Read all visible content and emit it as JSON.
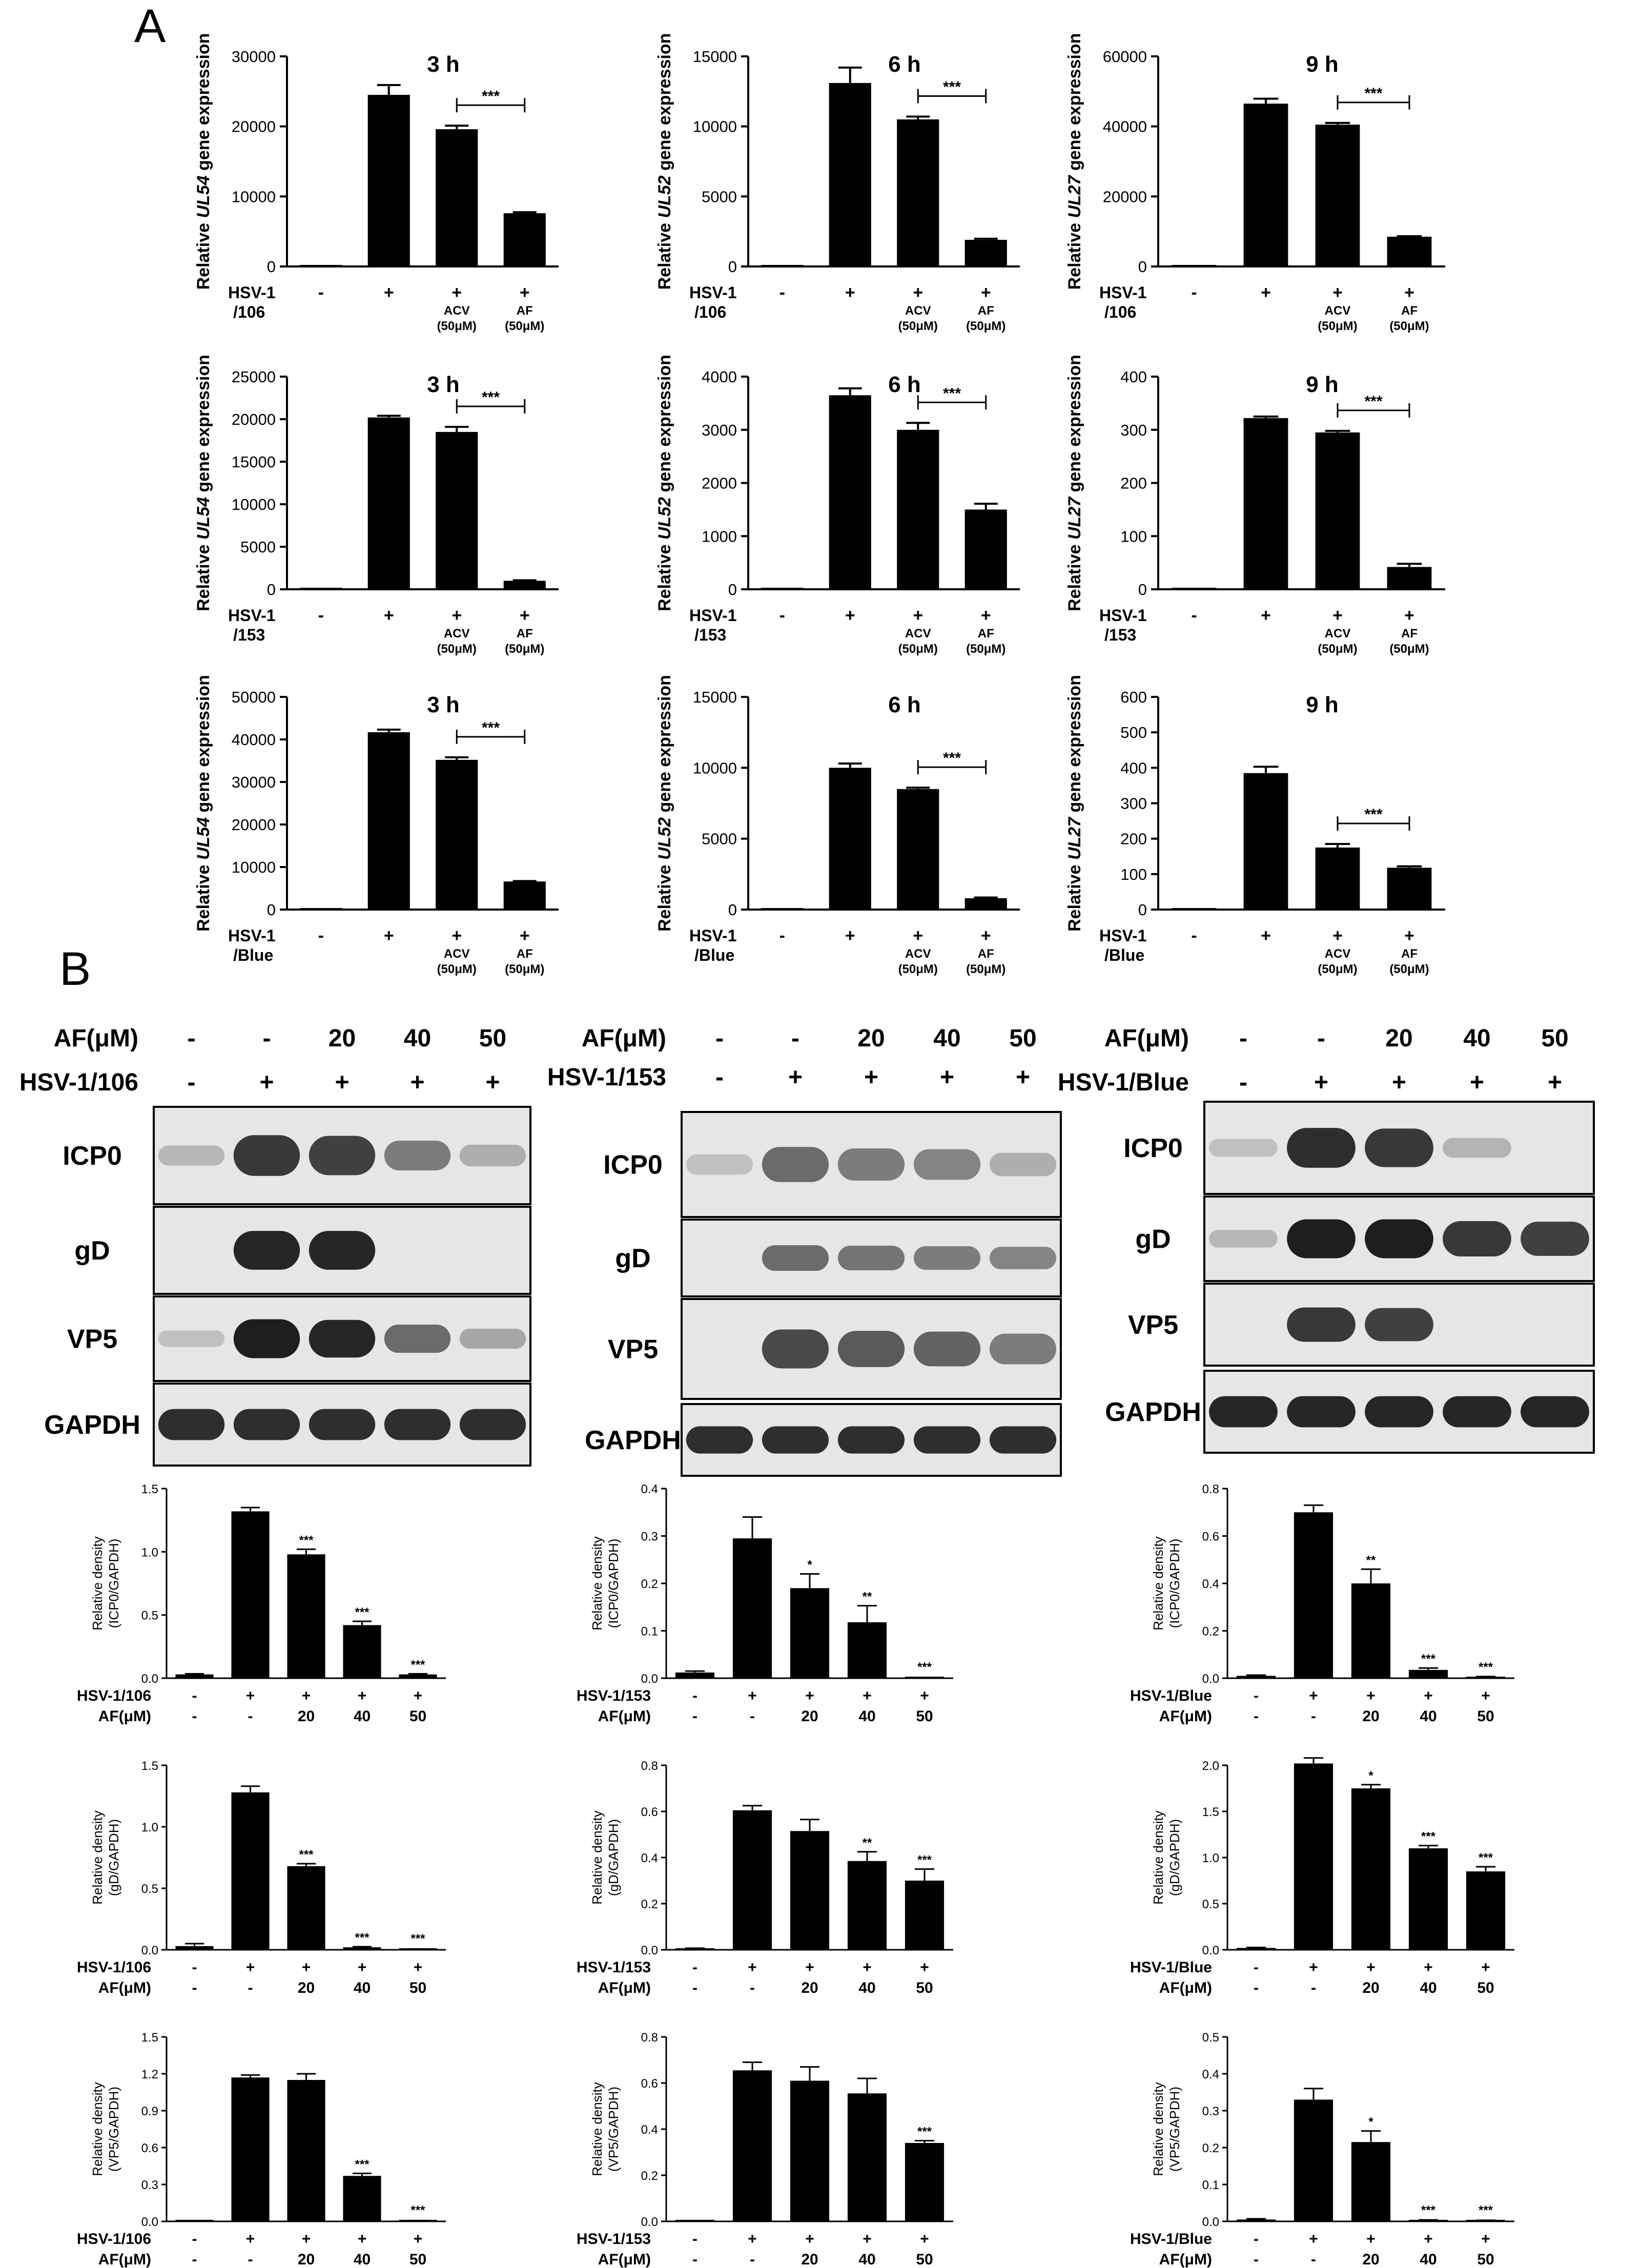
{
  "figure": {
    "panel_a_label": "A",
    "panel_b_label": "B"
  },
  "colors": {
    "bar": "#000000",
    "blot_bg": "#e6e6e6",
    "band": "#1e1e1e"
  },
  "panel_a": {
    "conditions": [
      {
        "hsv": "-",
        "drug": "",
        "conc": ""
      },
      {
        "hsv": "+",
        "drug": "",
        "conc": ""
      },
      {
        "hsv": "+",
        "drug": "ACV",
        "conc": "(50μM)"
      },
      {
        "hsv": "+",
        "drug": "AF",
        "conc": "(50μM)"
      }
    ],
    "rows": [
      {
        "strain_l1": "HSV-1",
        "strain_l2": "/106"
      },
      {
        "strain_l1": "HSV-1",
        "strain_l2": "/153"
      },
      {
        "strain_l1": "HSV-1",
        "strain_l2": "/Blue"
      }
    ],
    "sig_label": "***",
    "ylabel_pre": "Relative ",
    "ylabel_post": " gene expression"
  },
  "panel_b": {
    "blots": [
      {
        "af_label": "AF(μM)",
        "af_values": [
          "-",
          "-",
          "20",
          "40",
          "50"
        ],
        "hsv_label": "HSV-1/106",
        "hsv_values": [
          "-",
          "+",
          "+",
          "+",
          "+"
        ],
        "bands": [
          "ICP0",
          "gD",
          "VP5",
          "GAPDH"
        ]
      },
      {
        "af_label": "AF(μM)",
        "af_values": [
          "-",
          "-",
          "20",
          "40",
          "50"
        ],
        "hsv_label": "HSV-1/153",
        "hsv_values": [
          "-",
          "+",
          "+",
          "+",
          "+"
        ],
        "bands": [
          "ICP0",
          "gD",
          "VP5",
          "GAPDH"
        ]
      },
      {
        "af_label": "AF(μM)",
        "af_values": [
          "-",
          "-",
          "20",
          "40",
          "50"
        ],
        "hsv_label": "HSV-1/Blue",
        "hsv_values": [
          "-",
          "+",
          "+",
          "+",
          "+"
        ],
        "bands": [
          "ICP0",
          "gD",
          "VP5",
          "GAPDH"
        ]
      }
    ],
    "ylabel_l1": "Relative density",
    "af_label": "AF(μM)",
    "af_values": [
      "-",
      "-",
      "20",
      "40",
      "50"
    ],
    "hsv_values": [
      "-",
      "+",
      "+",
      "+",
      "+"
    ]
  },
  "chart_data": [
    {
      "id": "A-106-3h",
      "type": "bar",
      "title": "3 h",
      "gene": "UL54",
      "strain": "HSV-1/106",
      "ylim": [
        0,
        30000
      ],
      "yticks": [
        0,
        10000,
        20000,
        30000
      ],
      "values": [
        0,
        24500,
        19600,
        7600
      ],
      "errors": [
        0,
        1400,
        500,
        150
      ],
      "significance": [
        {
          "from": 2,
          "to": 3,
          "label": "***"
        }
      ]
    },
    {
      "id": "A-106-6h",
      "type": "bar",
      "title": "6 h",
      "gene": "UL52",
      "strain": "HSV-1/106",
      "ylim": [
        0,
        15000
      ],
      "yticks": [
        0,
        5000,
        10000,
        15000
      ],
      "values": [
        0,
        13100,
        10500,
        1900
      ],
      "errors": [
        0,
        1100,
        200,
        80
      ],
      "significance": [
        {
          "from": 2,
          "to": 3,
          "label": "***"
        }
      ]
    },
    {
      "id": "A-106-9h",
      "type": "bar",
      "title": "9 h",
      "gene": "UL27",
      "strain": "HSV-1/106",
      "ylim": [
        0,
        60000
      ],
      "yticks": [
        0,
        20000,
        40000,
        60000
      ],
      "values": [
        0,
        46500,
        40500,
        8500
      ],
      "errors": [
        0,
        1400,
        500,
        150
      ],
      "significance": [
        {
          "from": 2,
          "to": 3,
          "label": "***"
        }
      ]
    },
    {
      "id": "A-153-3h",
      "type": "bar",
      "title": "3 h",
      "gene": "UL54",
      "strain": "HSV-1/153",
      "ylim": [
        0,
        25000
      ],
      "yticks": [
        0,
        5000,
        10000,
        15000,
        20000,
        25000
      ],
      "values": [
        0,
        20200,
        18500,
        1000
      ],
      "errors": [
        0,
        200,
        600,
        60
      ],
      "significance": [
        {
          "from": 2,
          "to": 3,
          "label": "***"
        }
      ]
    },
    {
      "id": "A-153-6h",
      "type": "bar",
      "title": "6 h",
      "gene": "UL52",
      "strain": "HSV-1/153",
      "ylim": [
        0,
        4000
      ],
      "yticks": [
        0,
        1000,
        2000,
        3000,
        4000
      ],
      "values": [
        0,
        3650,
        3000,
        1500
      ],
      "errors": [
        0,
        130,
        130,
        110
      ],
      "significance": [
        {
          "from": 2,
          "to": 3,
          "label": "***"
        }
      ]
    },
    {
      "id": "A-153-9h",
      "type": "bar",
      "title": "9 h",
      "gene": "UL27",
      "strain": "HSV-1/153",
      "ylim": [
        0,
        400
      ],
      "yticks": [
        0,
        100,
        200,
        300,
        400
      ],
      "values": [
        2,
        322,
        295,
        42
      ],
      "errors": [
        0,
        3,
        3,
        6
      ],
      "significance": [
        {
          "from": 2,
          "to": 3,
          "label": "***"
        }
      ]
    },
    {
      "id": "A-Blue-3h",
      "type": "bar",
      "title": "3 h",
      "gene": "UL54",
      "strain": "HSV-1/Blue",
      "ylim": [
        0,
        50000
      ],
      "yticks": [
        0,
        10000,
        20000,
        30000,
        40000,
        50000
      ],
      "values": [
        0,
        41700,
        35200,
        6600
      ],
      "errors": [
        0,
        600,
        600,
        100
      ],
      "significance": [
        {
          "from": 2,
          "to": 3,
          "label": "***"
        }
      ]
    },
    {
      "id": "A-Blue-6h",
      "type": "bar",
      "title": "6 h",
      "gene": "UL52",
      "strain": "HSV-1/Blue",
      "ylim": [
        0,
        15000
      ],
      "yticks": [
        0,
        5000,
        10000,
        15000
      ],
      "values": [
        0,
        10000,
        8500,
        800
      ],
      "errors": [
        0,
        300,
        100,
        50
      ],
      "significance": [
        {
          "from": 2,
          "to": 3,
          "label": "***"
        }
      ]
    },
    {
      "id": "A-Blue-9h",
      "type": "bar",
      "title": "9 h",
      "gene": "UL27",
      "strain": "HSV-1/Blue",
      "ylim": [
        0,
        600
      ],
      "yticks": [
        0,
        100,
        200,
        300,
        400,
        500,
        600
      ],
      "values": [
        2,
        385,
        175,
        118
      ],
      "errors": [
        0,
        18,
        10,
        4
      ],
      "significance": [
        {
          "from": 2,
          "to": 3,
          "label": "***"
        }
      ]
    },
    {
      "id": "B-106-ICP0",
      "type": "bar",
      "protein": "ICP0",
      "strain": "HSV-1/106",
      "ylim": [
        0,
        1.5
      ],
      "yticks": [
        0,
        0.5,
        1.0,
        1.5
      ],
      "ytick_labels": [
        "0.0",
        "0.5",
        "1.0",
        "1.5"
      ],
      "values": [
        0.03,
        1.32,
        0.98,
        0.42,
        0.03
      ],
      "errors": [
        0.005,
        0.03,
        0.04,
        0.03,
        0.005
      ],
      "stars": [
        "",
        "",
        "***",
        "***",
        "***"
      ]
    },
    {
      "id": "B-153-ICP0",
      "type": "bar",
      "protein": "ICP0",
      "strain": "HSV-1/153",
      "ylim": [
        0,
        0.4
      ],
      "yticks": [
        0,
        0.1,
        0.2,
        0.3,
        0.4
      ],
      "ytick_labels": [
        "0.0",
        "0.1",
        "0.2",
        "0.3",
        "0.4"
      ],
      "values": [
        0.012,
        0.295,
        0.19,
        0.118,
        0.0
      ],
      "errors": [
        0.003,
        0.045,
        0.03,
        0.035,
        0
      ],
      "stars": [
        "",
        "",
        "*",
        "**",
        "***"
      ]
    },
    {
      "id": "B-Blue-ICP0",
      "type": "bar",
      "protein": "ICP0",
      "strain": "HSV-1/Blue",
      "ylim": [
        0,
        0.8
      ],
      "yticks": [
        0,
        0.2,
        0.4,
        0.6,
        0.8
      ],
      "ytick_labels": [
        "0.0",
        "0.2",
        "0.4",
        "0.6",
        "0.8"
      ],
      "values": [
        0.01,
        0.7,
        0.4,
        0.035,
        0.005
      ],
      "errors": [
        0.003,
        0.03,
        0.06,
        0.008,
        0.002
      ],
      "stars": [
        "",
        "",
        "**",
        "***",
        "***"
      ]
    },
    {
      "id": "B-106-gD",
      "type": "bar",
      "protein": "gD",
      "strain": "HSV-1/106",
      "ylim": [
        0,
        1.5
      ],
      "yticks": [
        0,
        0.5,
        1.0,
        1.5
      ],
      "ytick_labels": [
        "0.0",
        "0.5",
        "1.0",
        "1.5"
      ],
      "values": [
        0.03,
        1.28,
        0.68,
        0.02,
        0.005
      ],
      "errors": [
        0.02,
        0.05,
        0.02,
        0.005,
        0.002
      ],
      "stars": [
        "",
        "",
        "***",
        "***",
        "***"
      ]
    },
    {
      "id": "B-153-gD",
      "type": "bar",
      "protein": "gD",
      "strain": "HSV-1/153",
      "ylim": [
        0,
        0.8
      ],
      "yticks": [
        0,
        0.2,
        0.4,
        0.6,
        0.8
      ],
      "ytick_labels": [
        "0.0",
        "0.2",
        "0.4",
        "0.6",
        "0.8"
      ],
      "values": [
        0.005,
        0.605,
        0.515,
        0.385,
        0.3
      ],
      "errors": [
        0.002,
        0.02,
        0.05,
        0.04,
        0.05
      ],
      "stars": [
        "",
        "",
        "",
        "**",
        "***"
      ]
    },
    {
      "id": "B-Blue-gD",
      "type": "bar",
      "protein": "gD",
      "strain": "HSV-1/Blue",
      "ylim": [
        0,
        2.0
      ],
      "yticks": [
        0,
        0.5,
        1.0,
        1.5,
        2.0
      ],
      "ytick_labels": [
        "0.0",
        "0.5",
        "1.0",
        "1.5",
        "2.0"
      ],
      "values": [
        0.02,
        2.02,
        1.75,
        1.1,
        0.85
      ],
      "errors": [
        0.005,
        0.06,
        0.04,
        0.03,
        0.05
      ],
      "stars": [
        "",
        "",
        "*",
        "***",
        "***"
      ]
    },
    {
      "id": "B-106-VP5",
      "type": "bar",
      "protein": "VP5",
      "strain": "HSV-1/106",
      "ylim": [
        0,
        1.5
      ],
      "yticks": [
        0,
        0.3,
        0.6,
        0.9,
        1.2,
        1.5
      ],
      "ytick_labels": [
        "0.0",
        "0.3",
        "0.6",
        "0.9",
        "1.2",
        "1.5"
      ],
      "values": [
        0.0,
        1.17,
        1.15,
        0.37,
        0.005
      ],
      "errors": [
        0,
        0.02,
        0.05,
        0.02,
        0.002
      ],
      "stars": [
        "",
        "",
        "",
        "***",
        "***"
      ]
    },
    {
      "id": "B-153-VP5",
      "type": "bar",
      "protein": "VP5",
      "strain": "HSV-1/153",
      "ylim": [
        0,
        0.8
      ],
      "yticks": [
        0,
        0.2,
        0.4,
        0.6,
        0.8
      ],
      "ytick_labels": [
        "0.0",
        "0.2",
        "0.4",
        "0.6",
        "0.8"
      ],
      "values": [
        0.0,
        0.655,
        0.61,
        0.555,
        0.34
      ],
      "errors": [
        0,
        0.035,
        0.06,
        0.065,
        0.01
      ],
      "stars": [
        "",
        "",
        "",
        "",
        "***"
      ]
    },
    {
      "id": "B-Blue-VP5",
      "type": "bar",
      "protein": "VP5",
      "strain": "HSV-1/Blue",
      "ylim": [
        0,
        0.5
      ],
      "yticks": [
        0,
        0.1,
        0.2,
        0.3,
        0.4,
        0.5
      ],
      "ytick_labels": [
        "0.0",
        "0.1",
        "0.2",
        "0.3",
        "0.4",
        "0.5"
      ],
      "values": [
        0.005,
        0.33,
        0.215,
        0.003,
        0.002
      ],
      "errors": [
        0.002,
        0.03,
        0.03,
        0.001,
        0.001
      ],
      "stars": [
        "",
        "",
        "*",
        "***",
        "***"
      ]
    }
  ]
}
